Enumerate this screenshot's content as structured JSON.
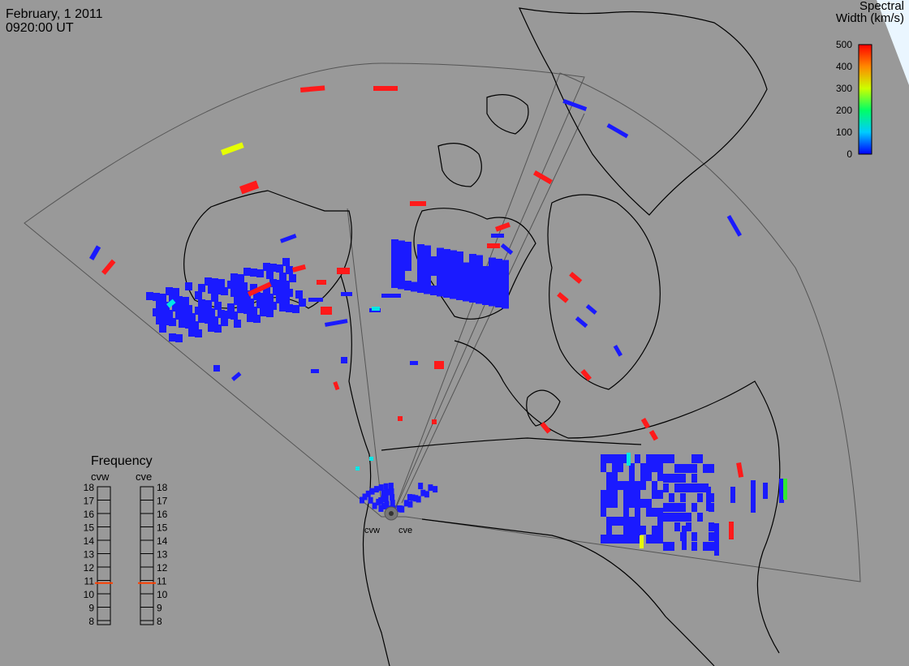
{
  "header": {
    "date": "February, 1 2011",
    "time": "0920:00 UT"
  },
  "legend": {
    "title_line1": "Spectral",
    "title_line2": "Width (km/s)",
    "ticks": [
      "500",
      "400",
      "300",
      "200",
      "100",
      "0"
    ],
    "ticks_values": [
      500,
      400,
      300,
      200,
      100,
      0
    ]
  },
  "frequency_panel": {
    "title": "Frequency",
    "radar_left": "cvw",
    "radar_right": "cve",
    "scale": [
      "18",
      "17",
      "16",
      "15",
      "14",
      "13",
      "12",
      "11",
      "10",
      "9",
      "8"
    ],
    "selected_cvw": 10.8,
    "selected_cve": 10.8
  },
  "radar_labels": {
    "left": "cvw",
    "right": "cve"
  },
  "colors": {
    "background": "#999999",
    "low": "#1a1aff",
    "high": "#ff1a1a",
    "yellow": "#e6ff00",
    "cyan": "#00e6e6",
    "green": "#33e633",
    "frequency_marker": "#ff4000"
  }
}
